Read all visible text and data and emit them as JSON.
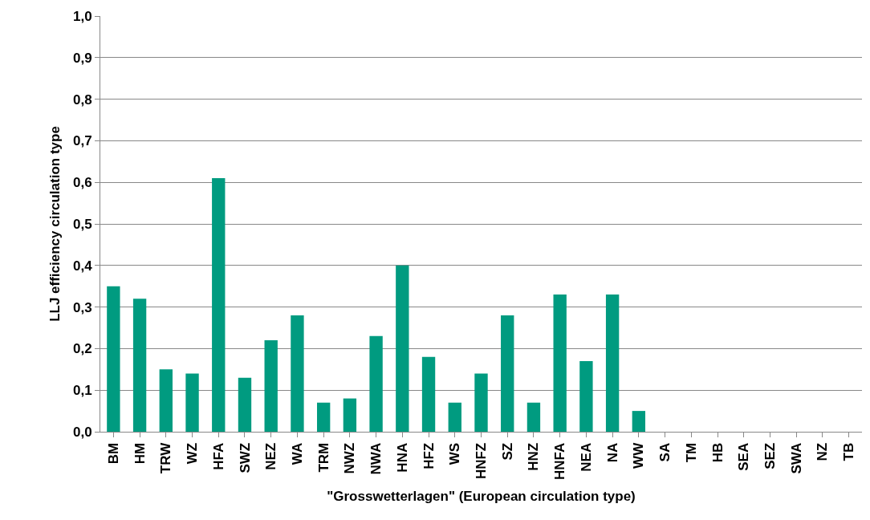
{
  "chart_data": {
    "type": "bar",
    "xlabel": "\"Grosswetterlagen\" (European circulation type)",
    "ylabel": "LLJ efficiency circulation type",
    "categories": [
      "BM",
      "HM",
      "TRW",
      "WZ",
      "HFA",
      "SWZ",
      "NEZ",
      "WA",
      "TRM",
      "NWZ",
      "NWA",
      "HNA",
      "HFZ",
      "WS",
      "HNFZ",
      "SZ",
      "HNZ",
      "HNFA",
      "NEA",
      "NA",
      "WW",
      "SA",
      "TM",
      "HB",
      "SEA",
      "SEZ",
      "SWA",
      "NZ",
      "TB"
    ],
    "values": [
      0.35,
      0.32,
      0.15,
      0.14,
      0.61,
      0.13,
      0.22,
      0.28,
      0.07,
      0.08,
      0.23,
      0.4,
      0.18,
      0.07,
      0.14,
      0.28,
      0.07,
      0.33,
      0.17,
      0.33,
      0.05,
      0,
      0,
      0,
      0,
      0,
      0,
      0,
      0
    ],
    "color": "#009b80",
    "ylim": [
      0,
      1
    ],
    "yticks": [
      {
        "value": 0,
        "label": "0,0"
      },
      {
        "value": 0.1,
        "label": "0,1"
      },
      {
        "value": 0.2,
        "label": "0,2"
      },
      {
        "value": 0.3,
        "label": "0,3"
      },
      {
        "value": 0.4,
        "label": "0,4"
      },
      {
        "value": 0.5,
        "label": "0,5"
      },
      {
        "value": 0.6,
        "label": "0,6"
      },
      {
        "value": 0.7,
        "label": "0,7"
      },
      {
        "value": 0.8,
        "label": "0,8"
      },
      {
        "value": 0.9,
        "label": "0,9"
      },
      {
        "value": 1,
        "label": "1,0"
      }
    ],
    "grid": "y"
  }
}
